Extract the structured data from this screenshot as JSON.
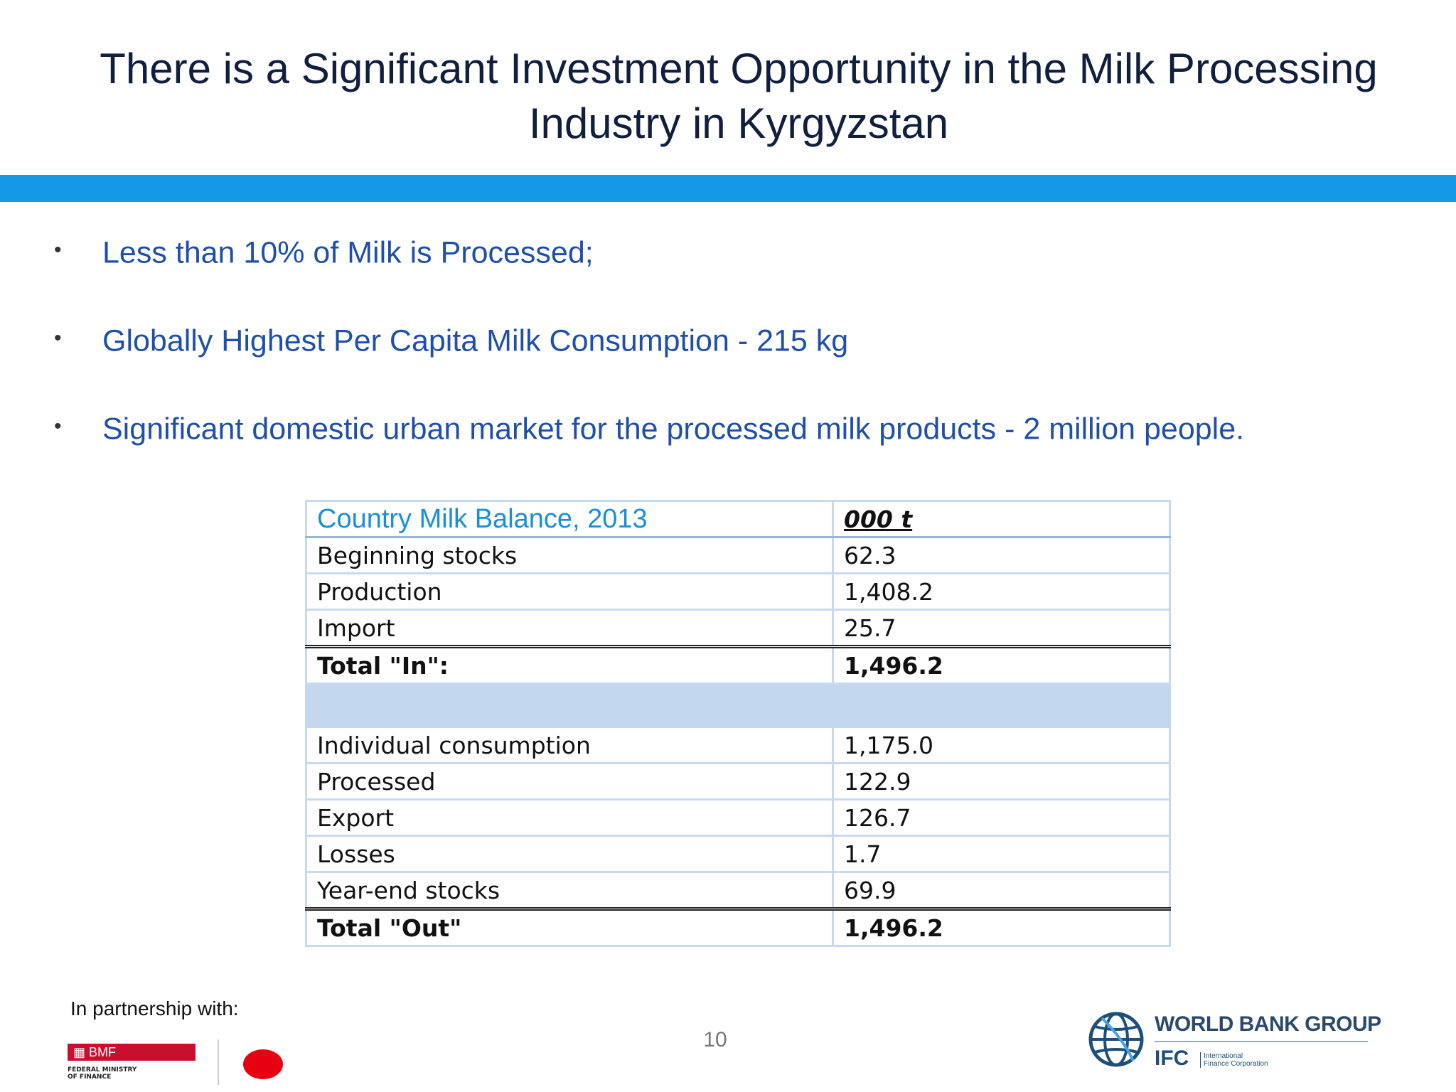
{
  "slide": {
    "title": "There is a Significant Investment Opportunity in the Milk Processing Industry in Kyrgyzstan",
    "bullets": [
      "Less than 10% of Milk is Processed;",
      "Globally Highest Per Capita Milk Consumption - 215 kg",
      "Significant domestic urban market for the processed milk products - 2 million people."
    ],
    "bullet_marker": "•"
  },
  "table": {
    "title": "Country Milk Balance, 2013",
    "unit": "000 t",
    "rows_in": [
      {
        "label": "Beginning stocks",
        "value": "62.3"
      },
      {
        "label": "Production",
        "value": "1,408.2"
      },
      {
        "label": "Import",
        "value": "25.7"
      }
    ],
    "total_in": {
      "label": "Total \"In\":",
      "value": "1,496.2"
    },
    "rows_out": [
      {
        "label": "Individual consumption",
        "value": "1,175.0"
      },
      {
        "label": "Processed",
        "value": "122.9"
      },
      {
        "label": "Export",
        "value": "126.7"
      },
      {
        "label": "Losses",
        "value": "1.7"
      },
      {
        "label": "Year-end stocks",
        "value": "69.9"
      }
    ],
    "total_out": {
      "label": "Total \"Out\"",
      "value": "1,496.2"
    }
  },
  "footer": {
    "partner_label": "In partnership with:",
    "page_number": "10",
    "bmf_logo_text": "BMF",
    "bmf_logo_sub": "FEDERAL MINISTRY\nOF FINANCE",
    "wbg_name": "WORLD BANK GROUP",
    "ifc_name": "IFC",
    "ifc_sub": "International\nFinance Corporation"
  },
  "colors": {
    "title_text": "#0f1f3d",
    "title_bar": "#1399e6",
    "bullet_text": "#1f4fa8",
    "table_title": "#1a8fd6",
    "table_spacer": "#c3d8ee"
  }
}
